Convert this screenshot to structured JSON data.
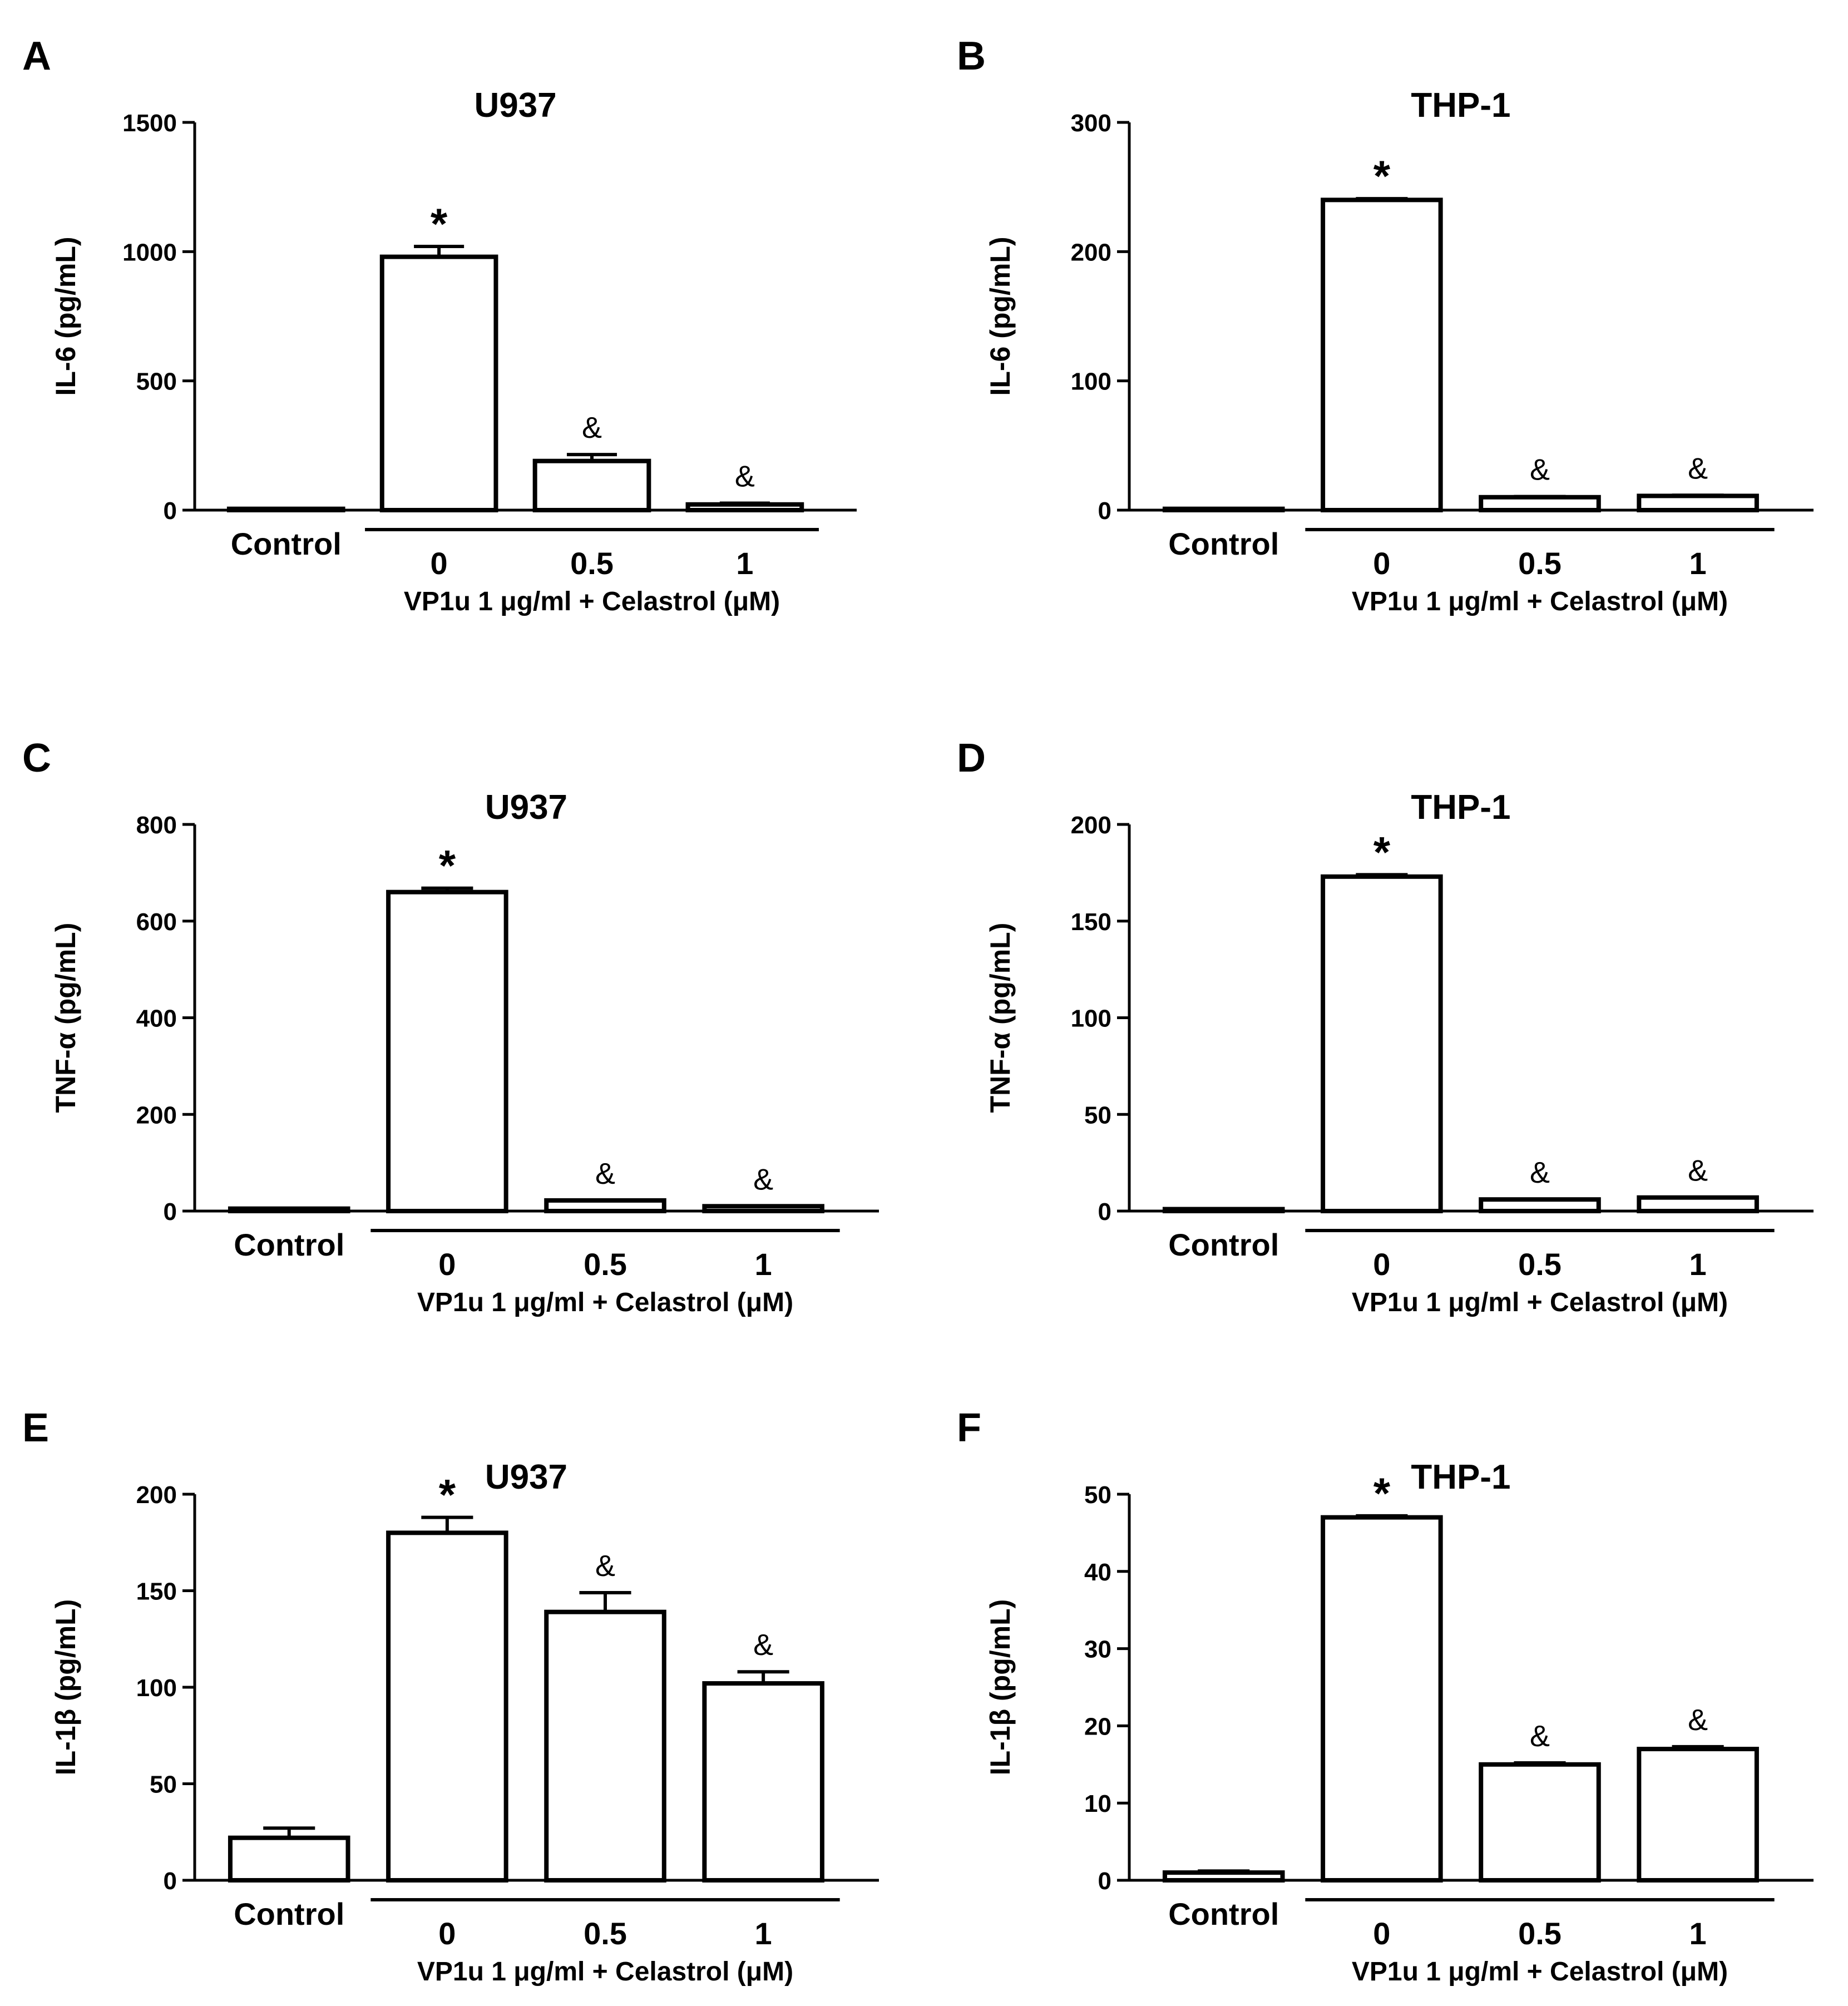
{
  "chart_data": [
    {
      "panel": "A",
      "type": "bar",
      "title": "U937",
      "ylabel": "IL-6 (pg/mL)",
      "ylim": [
        0,
        1500
      ],
      "yticks": [
        0,
        500,
        1000,
        1500
      ],
      "categories": [
        "Control",
        "0",
        "0.5",
        "1"
      ],
      "values": [
        5,
        980,
        190,
        22
      ],
      "errors": [
        0,
        40,
        25,
        5
      ],
      "significance": [
        "",
        "*",
        "&",
        "&"
      ],
      "group_label": "VP1u 1 μg/ml + Celastrol (μM)"
    },
    {
      "panel": "B",
      "type": "bar",
      "title": "THP-1",
      "ylabel": "IL-6 (pg/mL)",
      "ylim": [
        0,
        300
      ],
      "yticks": [
        0,
        100,
        200,
        300
      ],
      "categories": [
        "Control",
        "0",
        "0.5",
        "1"
      ],
      "values": [
        1,
        240,
        10,
        11
      ],
      "errors": [
        0,
        1,
        0.5,
        0.5
      ],
      "significance": [
        "",
        "*",
        "&",
        "&"
      ],
      "group_label": "VP1u 1 μg/ml + Celastrol (μM)"
    },
    {
      "panel": "C",
      "type": "bar",
      "title": "U937",
      "ylabel": "TNF-α  (pg/mL)",
      "ylim": [
        0,
        800
      ],
      "yticks": [
        0,
        200,
        400,
        600,
        800
      ],
      "categories": [
        "Control",
        "0",
        "0.5",
        "1"
      ],
      "values": [
        5,
        660,
        22,
        10
      ],
      "errors": [
        0,
        8,
        0,
        0
      ],
      "significance": [
        "",
        "*",
        "&",
        "&"
      ],
      "group_label": "VP1u 1 μg/ml + Celastrol (μM)"
    },
    {
      "panel": "D",
      "type": "bar",
      "title": "THP-1",
      "ylabel": "TNF-α  (pg/mL)",
      "ylim": [
        0,
        200
      ],
      "yticks": [
        0,
        50,
        100,
        150,
        200
      ],
      "categories": [
        "Control",
        "0",
        "0.5",
        "1"
      ],
      "values": [
        1,
        173,
        6,
        7
      ],
      "errors": [
        0,
        1,
        0,
        0
      ],
      "significance": [
        "",
        "*",
        "&",
        "&"
      ],
      "group_label": "VP1u 1 μg/ml + Celastrol (μM)"
    },
    {
      "panel": "E",
      "type": "bar",
      "title": "U937",
      "ylabel": "IL-1β  (pg/mL)",
      "ylim": [
        0,
        200
      ],
      "yticks": [
        0,
        50,
        100,
        150,
        200
      ],
      "categories": [
        "Control",
        "0",
        "0.5",
        "1"
      ],
      "values": [
        22,
        180,
        139,
        102
      ],
      "errors": [
        5,
        8,
        10,
        6
      ],
      "significance": [
        "",
        "*",
        "&",
        "&"
      ],
      "group_label": "VP1u 1 μg/ml + Celastrol (μM)"
    },
    {
      "panel": "F",
      "type": "bar",
      "title": "THP-1",
      "ylabel": "IL-1β  (pg/mL)",
      "ylim": [
        0,
        50
      ],
      "yticks": [
        0,
        10,
        20,
        30,
        40,
        50
      ],
      "categories": [
        "Control",
        "0",
        "0.5",
        "1"
      ],
      "values": [
        1,
        47,
        15,
        17
      ],
      "errors": [
        0.2,
        0.2,
        0.2,
        0.3
      ],
      "significance": [
        "",
        "*",
        "&",
        "&"
      ],
      "group_label": "VP1u 1 μg/ml + Celastrol (μM)"
    }
  ]
}
